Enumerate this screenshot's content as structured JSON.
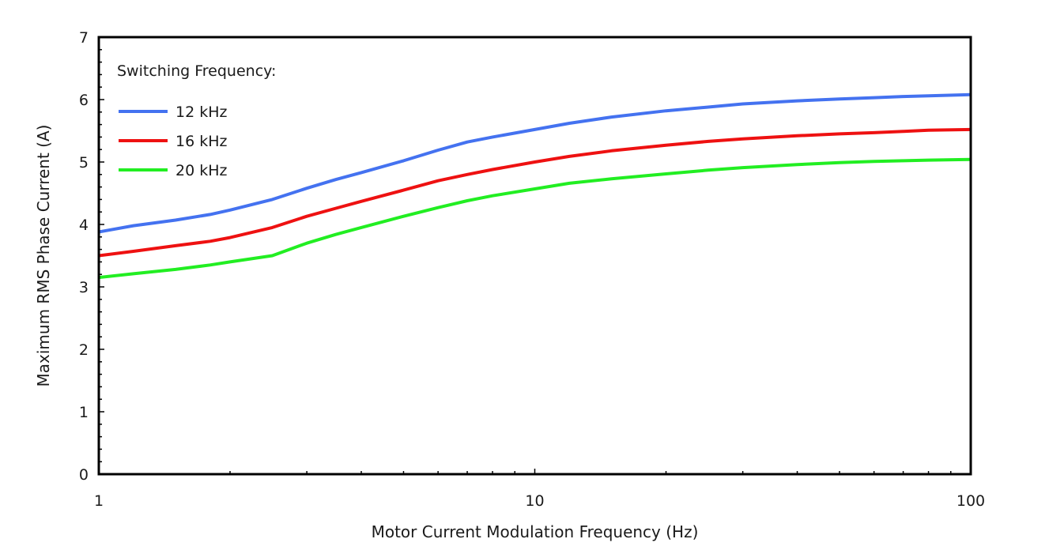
{
  "chart_data": {
    "type": "line",
    "title": "",
    "xlabel": "Motor Current Modulation Frequency (Hz)",
    "ylabel": "Maximum RMS Phase Current (A)",
    "x_scale": "log",
    "xlim": [
      1,
      100
    ],
    "ylim": [
      0,
      7
    ],
    "x_ticks": [
      "1",
      "10",
      "100"
    ],
    "y_ticks": [
      "0",
      "1",
      "2",
      "3",
      "4",
      "5",
      "6",
      "7"
    ],
    "grid": false,
    "legend": {
      "title": "Switching Frequency:",
      "placement": "top-left"
    },
    "series": [
      {
        "name": "12 kHz",
        "color": "#4472F0",
        "x": [
          1,
          1.2,
          1.5,
          1.8,
          2,
          2.5,
          3,
          3.5,
          4,
          5,
          6,
          7,
          8,
          10,
          12,
          15,
          20,
          25,
          30,
          40,
          50,
          60,
          70,
          80,
          100
        ],
        "y": [
          3.88,
          3.98,
          4.07,
          4.16,
          4.23,
          4.4,
          4.58,
          4.72,
          4.83,
          5.02,
          5.19,
          5.32,
          5.4,
          5.52,
          5.62,
          5.72,
          5.82,
          5.88,
          5.93,
          5.98,
          6.01,
          6.03,
          6.05,
          6.06,
          6.08
        ]
      },
      {
        "name": "16 kHz",
        "color": "#EE1111",
        "x": [
          1,
          1.2,
          1.5,
          1.8,
          2,
          2.5,
          3,
          3.5,
          4,
          5,
          6,
          7,
          8,
          10,
          12,
          15,
          20,
          25,
          30,
          40,
          50,
          60,
          70,
          80,
          100
        ],
        "y": [
          3.5,
          3.57,
          3.66,
          3.73,
          3.79,
          3.95,
          4.13,
          4.26,
          4.37,
          4.55,
          4.7,
          4.8,
          4.88,
          5.0,
          5.09,
          5.18,
          5.27,
          5.33,
          5.37,
          5.42,
          5.45,
          5.47,
          5.49,
          5.51,
          5.52
        ]
      },
      {
        "name": "20 kHz",
        "color": "#22EE22",
        "x": [
          1,
          1.2,
          1.5,
          1.8,
          2,
          2.5,
          3,
          3.5,
          4,
          5,
          6,
          7,
          8,
          10,
          12,
          15,
          20,
          25,
          30,
          40,
          50,
          60,
          70,
          80,
          100
        ],
        "y": [
          3.15,
          3.21,
          3.28,
          3.35,
          3.4,
          3.5,
          3.7,
          3.84,
          3.95,
          4.13,
          4.27,
          4.38,
          4.46,
          4.57,
          4.66,
          4.73,
          4.81,
          4.87,
          4.91,
          4.96,
          4.99,
          5.01,
          5.02,
          5.03,
          5.04
        ]
      }
    ]
  }
}
